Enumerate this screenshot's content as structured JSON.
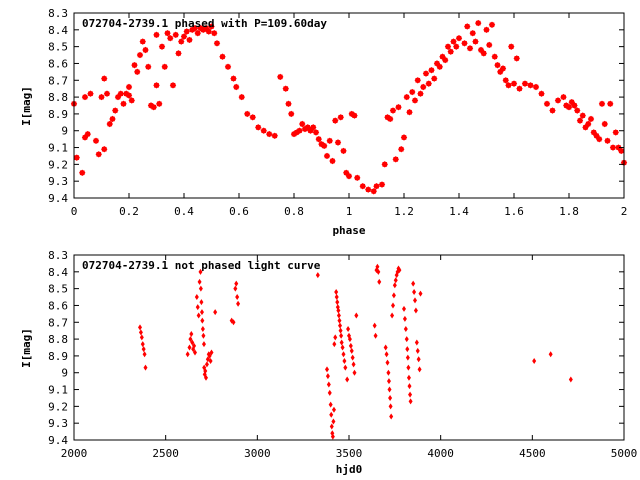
{
  "chart_data": [
    {
      "type": "scatter",
      "title": "072704-2739.1 phased with P=109.60day",
      "xlabel": "phase",
      "ylabel": "I[mag]",
      "xlim": [
        0,
        2
      ],
      "ylim": [
        8.3,
        9.4
      ],
      "y_inverted": true,
      "grid": false,
      "marker_color": "#ff0000",
      "x_ticks": [
        "0",
        "0.2",
        "0.4",
        "0.6",
        "0.8",
        "1",
        "1.2",
        "1.4",
        "1.6",
        "1.8",
        "2"
      ],
      "y_ticks": [
        "8.3",
        "8.4",
        "8.5",
        "8.6",
        "8.7",
        "8.8",
        "8.9",
        "9",
        "9.1",
        "9.2",
        "9.3",
        "9.4"
      ],
      "points": [
        [
          0.0,
          8.84
        ],
        [
          0.01,
          9.16
        ],
        [
          0.03,
          9.25
        ],
        [
          0.04,
          9.04
        ],
        [
          0.05,
          9.02
        ],
        [
          0.04,
          8.8
        ],
        [
          0.06,
          8.78
        ],
        [
          0.08,
          9.06
        ],
        [
          0.09,
          9.14
        ],
        [
          0.1,
          8.8
        ],
        [
          0.11,
          9.11
        ],
        [
          0.11,
          8.69
        ],
        [
          0.12,
          8.78
        ],
        [
          0.13,
          8.96
        ],
        [
          0.14,
          8.93
        ],
        [
          0.15,
          8.88
        ],
        [
          0.16,
          8.8
        ],
        [
          0.17,
          8.78
        ],
        [
          0.18,
          8.84
        ],
        [
          0.19,
          8.78
        ],
        [
          0.2,
          8.79
        ],
        [
          0.21,
          8.82
        ],
        [
          0.2,
          8.74
        ],
        [
          0.22,
          8.61
        ],
        [
          0.23,
          8.65
        ],
        [
          0.24,
          8.55
        ],
        [
          0.25,
          8.47
        ],
        [
          0.26,
          8.52
        ],
        [
          0.27,
          8.62
        ],
        [
          0.28,
          8.85
        ],
        [
          0.29,
          8.86
        ],
        [
          0.3,
          8.43
        ],
        [
          0.3,
          8.73
        ],
        [
          0.31,
          8.84
        ],
        [
          0.32,
          8.5
        ],
        [
          0.33,
          8.62
        ],
        [
          0.34,
          8.42
        ],
        [
          0.35,
          8.45
        ],
        [
          0.36,
          8.73
        ],
        [
          0.37,
          8.43
        ],
        [
          0.38,
          8.54
        ],
        [
          0.39,
          8.47
        ],
        [
          0.4,
          8.44
        ],
        [
          0.41,
          8.41
        ],
        [
          0.42,
          8.46
        ],
        [
          0.43,
          8.4
        ],
        [
          0.44,
          8.39
        ],
        [
          0.45,
          8.42
        ],
        [
          0.46,
          8.39
        ],
        [
          0.47,
          8.4
        ],
        [
          0.48,
          8.39
        ],
        [
          0.49,
          8.41
        ],
        [
          0.5,
          8.38
        ],
        [
          0.51,
          8.42
        ],
        [
          0.52,
          8.48
        ],
        [
          0.54,
          8.56
        ],
        [
          0.56,
          8.62
        ],
        [
          0.58,
          8.69
        ],
        [
          0.59,
          8.74
        ],
        [
          0.61,
          8.8
        ],
        [
          0.63,
          8.9
        ],
        [
          0.65,
          8.92
        ],
        [
          0.67,
          8.98
        ],
        [
          0.69,
          9.0
        ],
        [
          0.71,
          9.02
        ],
        [
          0.73,
          9.03
        ],
        [
          0.75,
          8.68
        ],
        [
          0.77,
          8.75
        ],
        [
          0.78,
          8.84
        ],
        [
          0.79,
          8.9
        ],
        [
          0.8,
          9.02
        ],
        [
          0.81,
          9.01
        ],
        [
          0.82,
          9.0
        ],
        [
          0.83,
          8.96
        ],
        [
          0.84,
          8.99
        ],
        [
          0.85,
          8.98
        ],
        [
          0.86,
          9.0
        ],
        [
          0.87,
          8.98
        ],
        [
          0.88,
          9.01
        ],
        [
          0.89,
          9.05
        ],
        [
          0.9,
          9.08
        ],
        [
          0.91,
          9.09
        ],
        [
          0.92,
          9.15
        ],
        [
          0.93,
          9.06
        ],
        [
          0.94,
          9.18
        ],
        [
          0.95,
          8.94
        ],
        [
          0.96,
          9.07
        ],
        [
          0.97,
          8.92
        ],
        [
          0.98,
          9.12
        ],
        [
          0.99,
          9.25
        ],
        [
          1.0,
          9.27
        ],
        [
          1.01,
          8.9
        ],
        [
          1.02,
          8.91
        ],
        [
          1.03,
          9.28
        ],
        [
          1.05,
          9.33
        ],
        [
          1.07,
          9.35
        ],
        [
          1.09,
          9.36
        ],
        [
          1.1,
          9.33
        ],
        [
          1.12,
          9.32
        ],
        [
          1.13,
          9.2
        ],
        [
          1.14,
          8.92
        ],
        [
          1.15,
          8.93
        ],
        [
          1.16,
          8.88
        ],
        [
          1.17,
          9.17
        ],
        [
          1.18,
          8.86
        ],
        [
          1.19,
          9.11
        ],
        [
          1.2,
          9.04
        ],
        [
          1.21,
          8.8
        ],
        [
          1.22,
          8.89
        ],
        [
          1.23,
          8.77
        ],
        [
          1.24,
          8.82
        ],
        [
          1.25,
          8.7
        ],
        [
          1.26,
          8.78
        ],
        [
          1.27,
          8.74
        ],
        [
          1.28,
          8.66
        ],
        [
          1.29,
          8.72
        ],
        [
          1.3,
          8.64
        ],
        [
          1.31,
          8.69
        ],
        [
          1.32,
          8.6
        ],
        [
          1.33,
          8.62
        ],
        [
          1.34,
          8.56
        ],
        [
          1.35,
          8.58
        ],
        [
          1.36,
          8.5
        ],
        [
          1.37,
          8.53
        ],
        [
          1.38,
          8.47
        ],
        [
          1.39,
          8.5
        ],
        [
          1.4,
          8.45
        ],
        [
          1.42,
          8.48
        ],
        [
          1.43,
          8.38
        ],
        [
          1.44,
          8.51
        ],
        [
          1.45,
          8.42
        ],
        [
          1.46,
          8.47
        ],
        [
          1.47,
          8.36
        ],
        [
          1.48,
          8.52
        ],
        [
          1.49,
          8.54
        ],
        [
          1.5,
          8.4
        ],
        [
          1.51,
          8.49
        ],
        [
          1.52,
          8.37
        ],
        [
          1.53,
          8.56
        ],
        [
          1.54,
          8.61
        ],
        [
          1.55,
          8.65
        ],
        [
          1.56,
          8.63
        ],
        [
          1.57,
          8.7
        ],
        [
          1.58,
          8.73
        ],
        [
          1.59,
          8.5
        ],
        [
          1.6,
          8.72
        ],
        [
          1.61,
          8.57
        ],
        [
          1.62,
          8.75
        ],
        [
          1.64,
          8.72
        ],
        [
          1.66,
          8.73
        ],
        [
          1.68,
          8.74
        ],
        [
          1.7,
          8.78
        ],
        [
          1.72,
          8.84
        ],
        [
          1.74,
          8.88
        ],
        [
          1.76,
          8.82
        ],
        [
          1.78,
          8.8
        ],
        [
          1.79,
          8.85
        ],
        [
          1.8,
          8.86
        ],
        [
          1.81,
          8.83
        ],
        [
          1.82,
          8.85
        ],
        [
          1.83,
          8.88
        ],
        [
          1.84,
          8.94
        ],
        [
          1.85,
          8.91
        ],
        [
          1.86,
          8.98
        ],
        [
          1.87,
          8.96
        ],
        [
          1.88,
          8.93
        ],
        [
          1.89,
          9.01
        ],
        [
          1.9,
          9.03
        ],
        [
          1.91,
          9.05
        ],
        [
          1.92,
          8.84
        ],
        [
          1.93,
          8.96
        ],
        [
          1.94,
          9.06
        ],
        [
          1.95,
          8.84
        ],
        [
          1.96,
          9.1
        ],
        [
          1.97,
          9.01
        ],
        [
          1.98,
          9.1
        ],
        [
          2.0,
          9.19
        ],
        [
          1.99,
          9.12
        ]
      ]
    },
    {
      "type": "scatter",
      "title": "072704-2739.1 not phased light curve",
      "xlabel": "hjd0",
      "ylabel": "I[mag]",
      "xlim": [
        2000,
        5000
      ],
      "ylim": [
        8.3,
        9.4
      ],
      "y_inverted": true,
      "grid": false,
      "marker_color": "#ff0000",
      "x_ticks": [
        "2000",
        "2500",
        "3000",
        "3500",
        "4000",
        "4500",
        "5000"
      ],
      "y_ticks": [
        "8.3",
        "8.4",
        "8.5",
        "8.6",
        "8.7",
        "8.8",
        "8.9",
        "9",
        "9.1",
        "9.2",
        "9.3",
        "9.4"
      ],
      "points": [
        [
          2360,
          8.73
        ],
        [
          2365,
          8.76
        ],
        [
          2370,
          8.79
        ],
        [
          2375,
          8.83
        ],
        [
          2380,
          8.86
        ],
        [
          2385,
          8.89
        ],
        [
          2390,
          8.97
        ],
        [
          2620,
          8.89
        ],
        [
          2630,
          8.85
        ],
        [
          2635,
          8.8
        ],
        [
          2640,
          8.77
        ],
        [
          2645,
          8.82
        ],
        [
          2650,
          8.86
        ],
        [
          2655,
          8.84
        ],
        [
          2660,
          8.88
        ],
        [
          2670,
          8.55
        ],
        [
          2675,
          8.61
        ],
        [
          2680,
          8.66
        ],
        [
          2685,
          8.46
        ],
        [
          2690,
          8.4
        ],
        [
          2692,
          8.5
        ],
        [
          2695,
          8.58
        ],
        [
          2698,
          8.64
        ],
        [
          2700,
          8.69
        ],
        [
          2703,
          8.74
        ],
        [
          2706,
          8.78
        ],
        [
          2709,
          8.83
        ],
        [
          2710,
          8.97
        ],
        [
          2713,
          9.01
        ],
        [
          2716,
          8.99
        ],
        [
          2720,
          9.03
        ],
        [
          2725,
          8.95
        ],
        [
          2730,
          8.92
        ],
        [
          2735,
          8.89
        ],
        [
          2740,
          8.9
        ],
        [
          2745,
          8.93
        ],
        [
          2750,
          8.88
        ],
        [
          2770,
          8.64
        ],
        [
          2860,
          8.69
        ],
        [
          2870,
          8.7
        ],
        [
          2880,
          8.5
        ],
        [
          2885,
          8.47
        ],
        [
          2890,
          8.55
        ],
        [
          2895,
          8.59
        ],
        [
          3330,
          8.42
        ],
        [
          3380,
          8.98
        ],
        [
          3385,
          9.02
        ],
        [
          3390,
          9.07
        ],
        [
          3395,
          9.12
        ],
        [
          3400,
          9.19
        ],
        [
          3403,
          9.25
        ],
        [
          3406,
          9.32
        ],
        [
          3409,
          9.36
        ],
        [
          3412,
          9.38
        ],
        [
          3415,
          9.29
        ],
        [
          3418,
          9.22
        ],
        [
          3420,
          8.83
        ],
        [
          3425,
          8.79
        ],
        [
          3430,
          8.52
        ],
        [
          3433,
          8.55
        ],
        [
          3436,
          8.58
        ],
        [
          3439,
          8.61
        ],
        [
          3442,
          8.63
        ],
        [
          3445,
          8.66
        ],
        [
          3448,
          8.69
        ],
        [
          3451,
          8.72
        ],
        [
          3454,
          8.75
        ],
        [
          3457,
          8.78
        ],
        [
          3460,
          8.82
        ],
        [
          3465,
          8.85
        ],
        [
          3470,
          8.89
        ],
        [
          3475,
          8.93
        ],
        [
          3480,
          8.97
        ],
        [
          3490,
          9.04
        ],
        [
          3495,
          8.74
        ],
        [
          3500,
          8.78
        ],
        [
          3505,
          8.8
        ],
        [
          3510,
          8.84
        ],
        [
          3515,
          8.87
        ],
        [
          3520,
          8.91
        ],
        [
          3525,
          8.95
        ],
        [
          3530,
          9.0
        ],
        [
          3540,
          8.66
        ],
        [
          3640,
          8.72
        ],
        [
          3645,
          8.78
        ],
        [
          3650,
          8.39
        ],
        [
          3655,
          8.37
        ],
        [
          3660,
          8.4
        ],
        [
          3665,
          8.46
        ],
        [
          3700,
          8.85
        ],
        [
          3705,
          8.89
        ],
        [
          3710,
          8.94
        ],
        [
          3715,
          9.0
        ],
        [
          3718,
          9.05
        ],
        [
          3721,
          9.1
        ],
        [
          3724,
          9.15
        ],
        [
          3727,
          9.2
        ],
        [
          3730,
          9.26
        ],
        [
          3735,
          8.66
        ],
        [
          3740,
          8.6
        ],
        [
          3745,
          8.54
        ],
        [
          3750,
          8.48
        ],
        [
          3755,
          8.45
        ],
        [
          3760,
          8.42
        ],
        [
          3765,
          8.4
        ],
        [
          3770,
          8.38
        ],
        [
          3775,
          8.39
        ],
        [
          3800,
          8.62
        ],
        [
          3805,
          8.68
        ],
        [
          3810,
          8.74
        ],
        [
          3815,
          8.8
        ],
        [
          3818,
          8.86
        ],
        [
          3821,
          8.91
        ],
        [
          3824,
          8.97
        ],
        [
          3827,
          9.03
        ],
        [
          3830,
          9.08
        ],
        [
          3833,
          9.13
        ],
        [
          3836,
          9.17
        ],
        [
          3850,
          8.47
        ],
        [
          3855,
          8.52
        ],
        [
          3860,
          8.57
        ],
        [
          3865,
          8.63
        ],
        [
          3870,
          8.82
        ],
        [
          3875,
          8.87
        ],
        [
          3880,
          8.92
        ],
        [
          3885,
          8.98
        ],
        [
          3890,
          8.53
        ],
        [
          4510,
          8.93
        ],
        [
          4600,
          8.89
        ],
        [
          4710,
          9.04
        ]
      ]
    }
  ]
}
